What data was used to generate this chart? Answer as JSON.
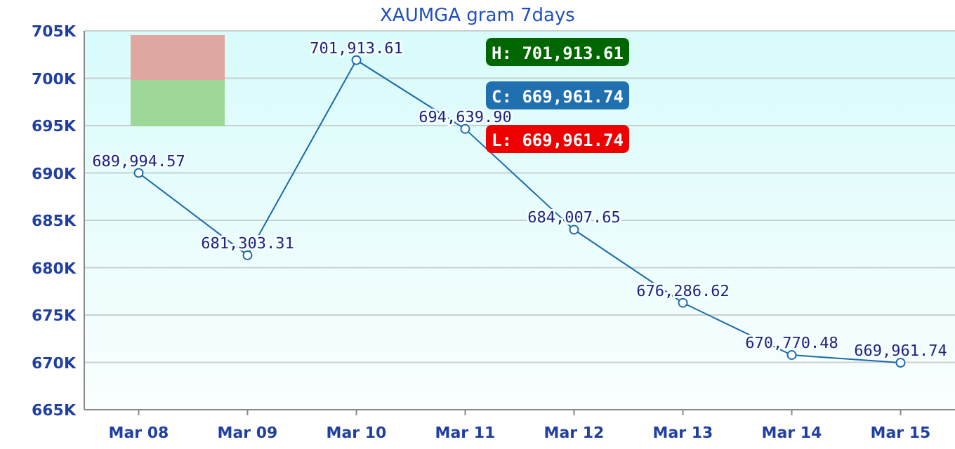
{
  "chart_data": {
    "type": "line",
    "title": "XAUMGA gram  7days",
    "categories": [
      "Mar 08",
      "Mar 09",
      "Mar 10",
      "Mar 11",
      "Mar 12",
      "Mar 13",
      "Mar 14",
      "Mar 15"
    ],
    "series": [
      {
        "color": "#1a6aaa",
        "values": [
          689994.57,
          681303.31,
          701913.61,
          694639.9,
          684007.65,
          676286.62,
          670770.48,
          669961.74
        ],
        "value_labels": [
          "689,994.57",
          "681,303.31",
          "701,913.61",
          "694,639.90",
          "684,007.65",
          "676,286.62",
          "670,770.48",
          "669,961.74"
        ]
      }
    ],
    "ylim": [
      665000,
      705000
    ],
    "yticks": [
      {
        "value": 665000,
        "label": "665K"
      },
      {
        "value": 670000,
        "label": "670K"
      },
      {
        "value": 675000,
        "label": "675K"
      },
      {
        "value": 680000,
        "label": "680K"
      },
      {
        "value": 685000,
        "label": "685K"
      },
      {
        "value": 690000,
        "label": "690K"
      },
      {
        "value": 695000,
        "label": "695K"
      },
      {
        "value": 700000,
        "label": "700K"
      },
      {
        "value": 705000,
        "label": "705K"
      }
    ],
    "grid": "y",
    "marker": "circle",
    "line_style": "solid",
    "annotations": [
      "H: 701,913.61",
      "C: 669,961.74",
      "L: 669,961.74"
    ]
  }
}
